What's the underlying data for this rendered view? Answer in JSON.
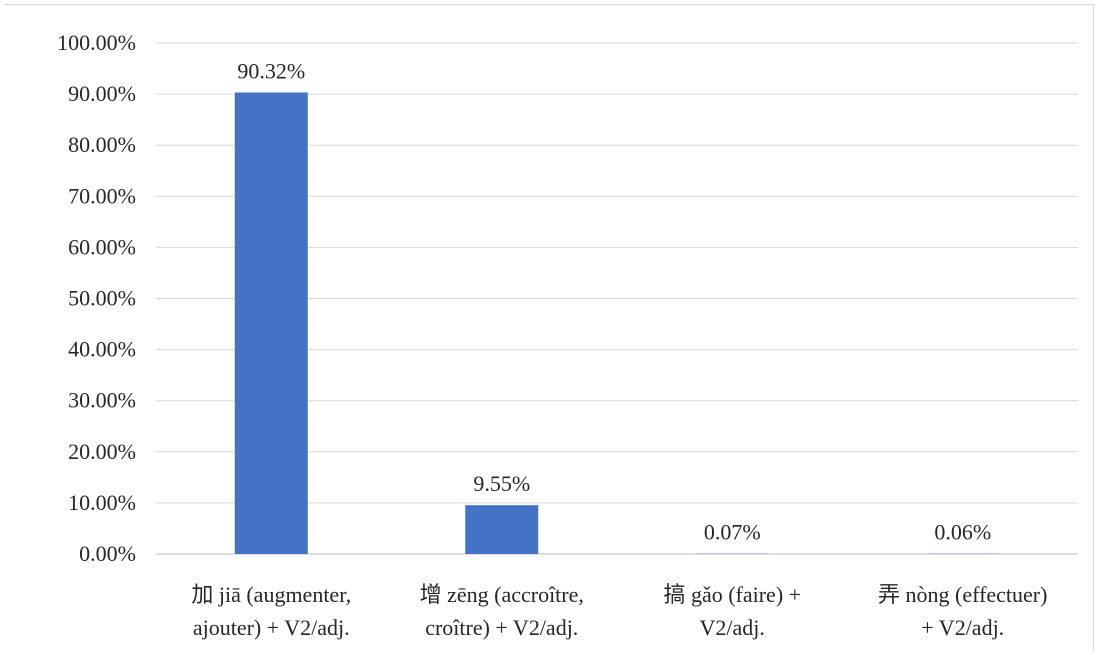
{
  "chart_data": {
    "type": "bar",
    "title": "",
    "xlabel": "",
    "ylabel": "",
    "ylim": [
      0,
      100
    ],
    "y_ticks": [
      "0.00%",
      "10.00%",
      "20.00%",
      "30.00%",
      "40.00%",
      "50.00%",
      "60.00%",
      "70.00%",
      "80.00%",
      "90.00%",
      "100.00%"
    ],
    "grid": true,
    "legend": "none",
    "bar_color": "#4472C4",
    "categories": [
      [
        "加 jiā (augmenter,",
        "ajouter) + V2/adj."
      ],
      [
        "增 zēng (accroître,",
        "croître) + V2/adj."
      ],
      [
        "搞 gǎo (faire) +",
        "V2/adj."
      ],
      [
        "弄 nòng (effectuer)",
        "+ V2/adj."
      ]
    ],
    "values": [
      90.32,
      9.55,
      0.07,
      0.06
    ],
    "data_labels": [
      "90.32%",
      "9.55%",
      "0.07%",
      "0.06%"
    ]
  }
}
